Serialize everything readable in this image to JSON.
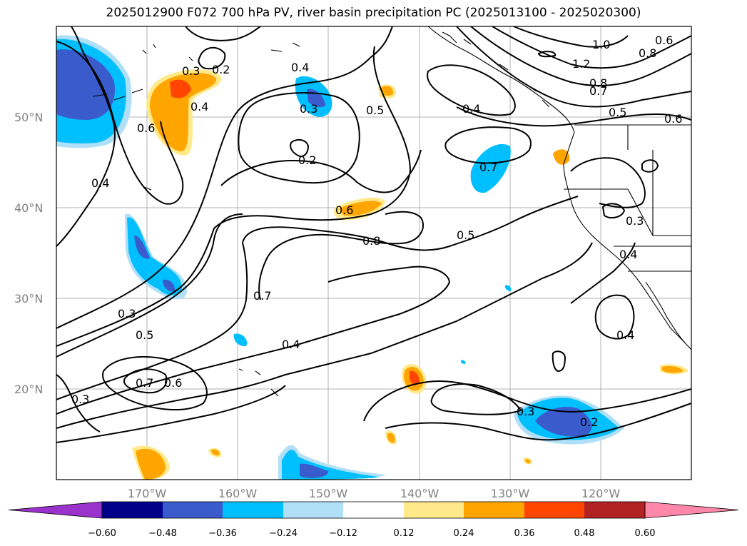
{
  "title": "2025012900 F072 700 hPa PV, river basin precipitation PC (2025013100 - 2025020300)",
  "map": {
    "lon_range": [
      -180,
      -110
    ],
    "lat_range": [
      10,
      60
    ],
    "lat_labels": [
      "20°N",
      "30°N",
      "40°N",
      "50°N"
    ],
    "lon_labels": [
      "170°W",
      "160°W",
      "150°W",
      "140°W",
      "130°W",
      "120°W"
    ],
    "contour_labels": [
      "0.3",
      "0.2",
      "0.4",
      "0.6",
      "0.4",
      "0.4",
      "0.3",
      "0.2",
      "0.5",
      "0.4",
      "1.0",
      "0.6",
      "0.8",
      "1.2",
      "0.8",
      "0.7",
      "0.5",
      "0.6",
      "0.7",
      "0.6",
      "0.8",
      "0.5",
      "0.3",
      "0.4",
      "0.3",
      "0.7",
      "0.5",
      "0.7",
      "0.6",
      "0.3",
      "0.4",
      "0.3",
      "0.2",
      "0.4"
    ]
  },
  "colorbar": {
    "colors": [
      "#9933cc",
      "#00008b",
      "#3a5bcc",
      "#00bfff",
      "#b0e0f8",
      "#ffffff",
      "#ffe98a",
      "#ffa500",
      "#ff4500",
      "#b22222",
      "#ff88aa"
    ],
    "tick_labels": [
      "−0.60",
      "−0.48",
      "−0.36",
      "−0.24",
      "−0.12",
      "0.12",
      "0.24",
      "0.36",
      "0.48",
      "0.60"
    ]
  }
}
